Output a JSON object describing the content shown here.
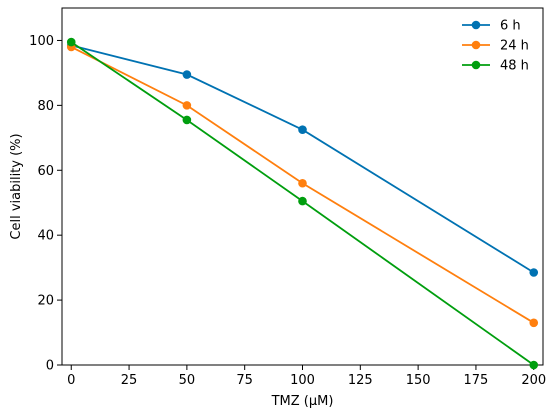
{
  "chart_data": {
    "type": "line",
    "title": "",
    "xlabel": "TMZ (µM)",
    "ylabel": "Cell viability (%)",
    "xlim": [
      -4,
      204
    ],
    "ylim": [
      0,
      110
    ],
    "xticks": [
      0,
      25,
      50,
      75,
      100,
      125,
      150,
      175,
      200
    ],
    "yticks": [
      0,
      20,
      40,
      60,
      80,
      100
    ],
    "grid": false,
    "legend_position": "top-right",
    "series": [
      {
        "name": "6 h",
        "color": "#0072b2",
        "x": [
          0,
          50,
          100,
          200
        ],
        "y": [
          98.5,
          89.5,
          72.5,
          28.5
        ]
      },
      {
        "name": "24 h",
        "color": "#ff7f0e",
        "x": [
          0,
          50,
          100,
          200
        ],
        "y": [
          98.0,
          80.0,
          56.0,
          13.0
        ]
      },
      {
        "name": "48 h",
        "color": "#009e0e",
        "x": [
          0,
          50,
          100,
          200
        ],
        "y": [
          99.5,
          75.5,
          50.5,
          0.0
        ]
      }
    ]
  }
}
